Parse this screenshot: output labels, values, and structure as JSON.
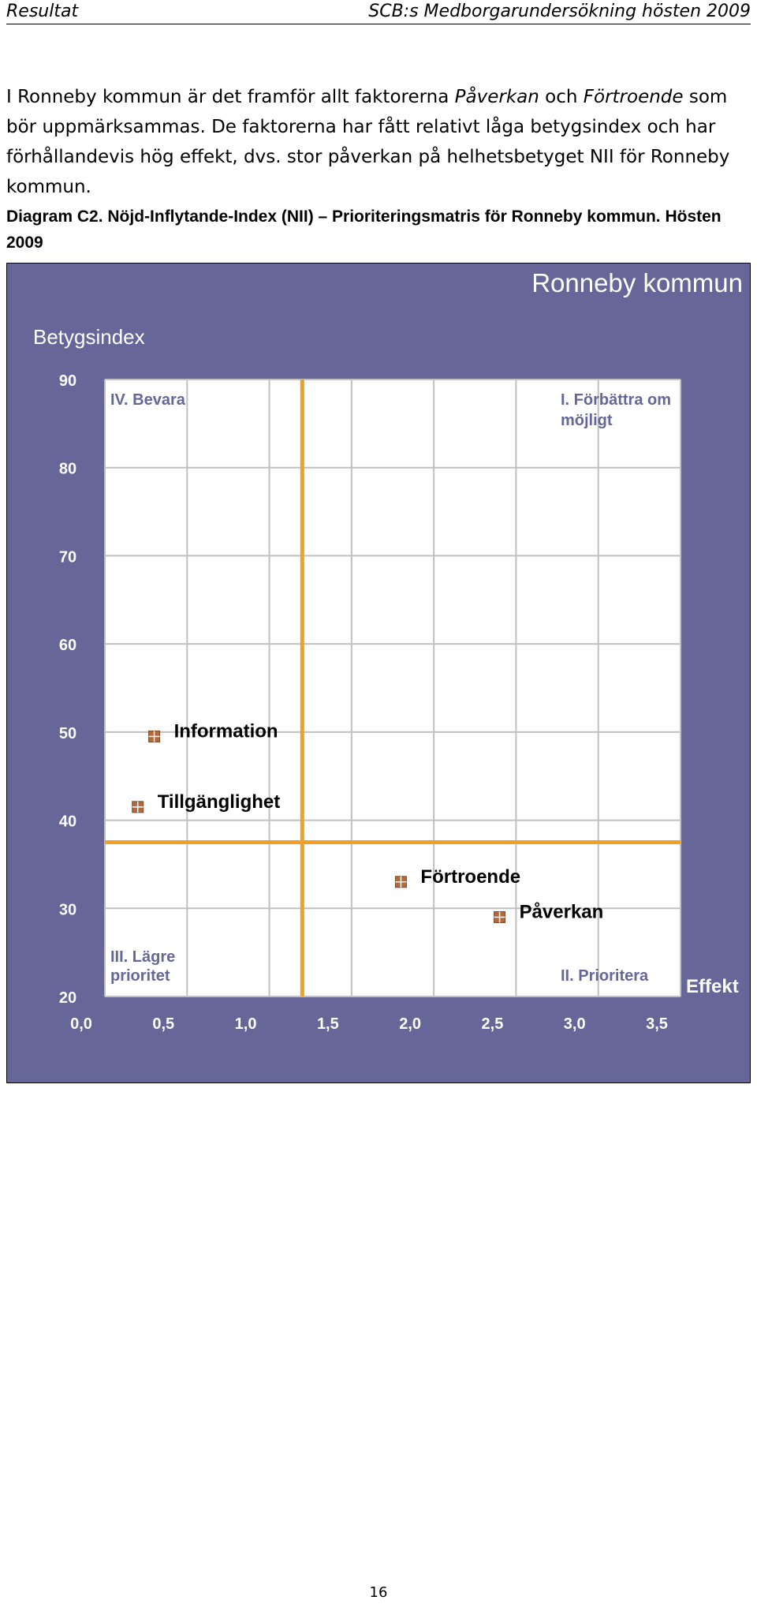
{
  "header": {
    "left": "Resultat",
    "right": "SCB:s Medborgarundersökning hösten 2009"
  },
  "intro": {
    "p1": "I Ronneby kommun är det framför allt faktorerna ",
    "em1": "Påverkan",
    "p2": " och ",
    "em2": "Förtroende",
    "p3": " som bör uppmärksammas. De faktorerna har fått relativt låga betygsindex och har förhållandevis hög effekt, dvs. stor påverkan på helhetsbetyget NII för Ronneby kommun."
  },
  "caption": "Diagram C2. Nöjd-Inflytande-Index (NII) – Prioriteringsmatris för Ronneby kommun. Hösten 2009",
  "colors": {
    "frame": "#666699",
    "plot": "#ffffff",
    "grid": "#c0c0c0",
    "divider": "#f0a028",
    "marker": "#b26a3c",
    "quadrant_text": "#666699"
  },
  "chart_data": {
    "type": "scatter",
    "title": "Ronneby kommun",
    "ylabel": "Betygsindex",
    "xlabel": "Effekt",
    "xlim": [
      0,
      3.5
    ],
    "ylim": [
      20,
      90
    ],
    "x_ticks": [
      "0,0",
      "0,5",
      "1,0",
      "1,5",
      "2,0",
      "2,5",
      "3,0",
      "3,5"
    ],
    "y_ticks": [
      "90",
      "80",
      "70",
      "60",
      "50",
      "40",
      "30",
      "20"
    ],
    "grid": true,
    "dividers": {
      "x": 1.2,
      "y": 37.5
    },
    "quadrants": {
      "top_left": "IV. Bevara",
      "top_right": [
        "I. Förbättra om",
        "möjligt"
      ],
      "bottom_left": [
        "III. Lägre",
        "prioritet"
      ],
      "bottom_right": "II. Prioritera"
    },
    "points": [
      {
        "label": "Information",
        "x": 0.3,
        "y": 49.5
      },
      {
        "label": "Tillgänglighet",
        "x": 0.2,
        "y": 41.5
      },
      {
        "label": "Förtroende",
        "x": 1.8,
        "y": 33.0
      },
      {
        "label": "Påverkan",
        "x": 2.4,
        "y": 29.0
      }
    ]
  },
  "page_number": "16"
}
